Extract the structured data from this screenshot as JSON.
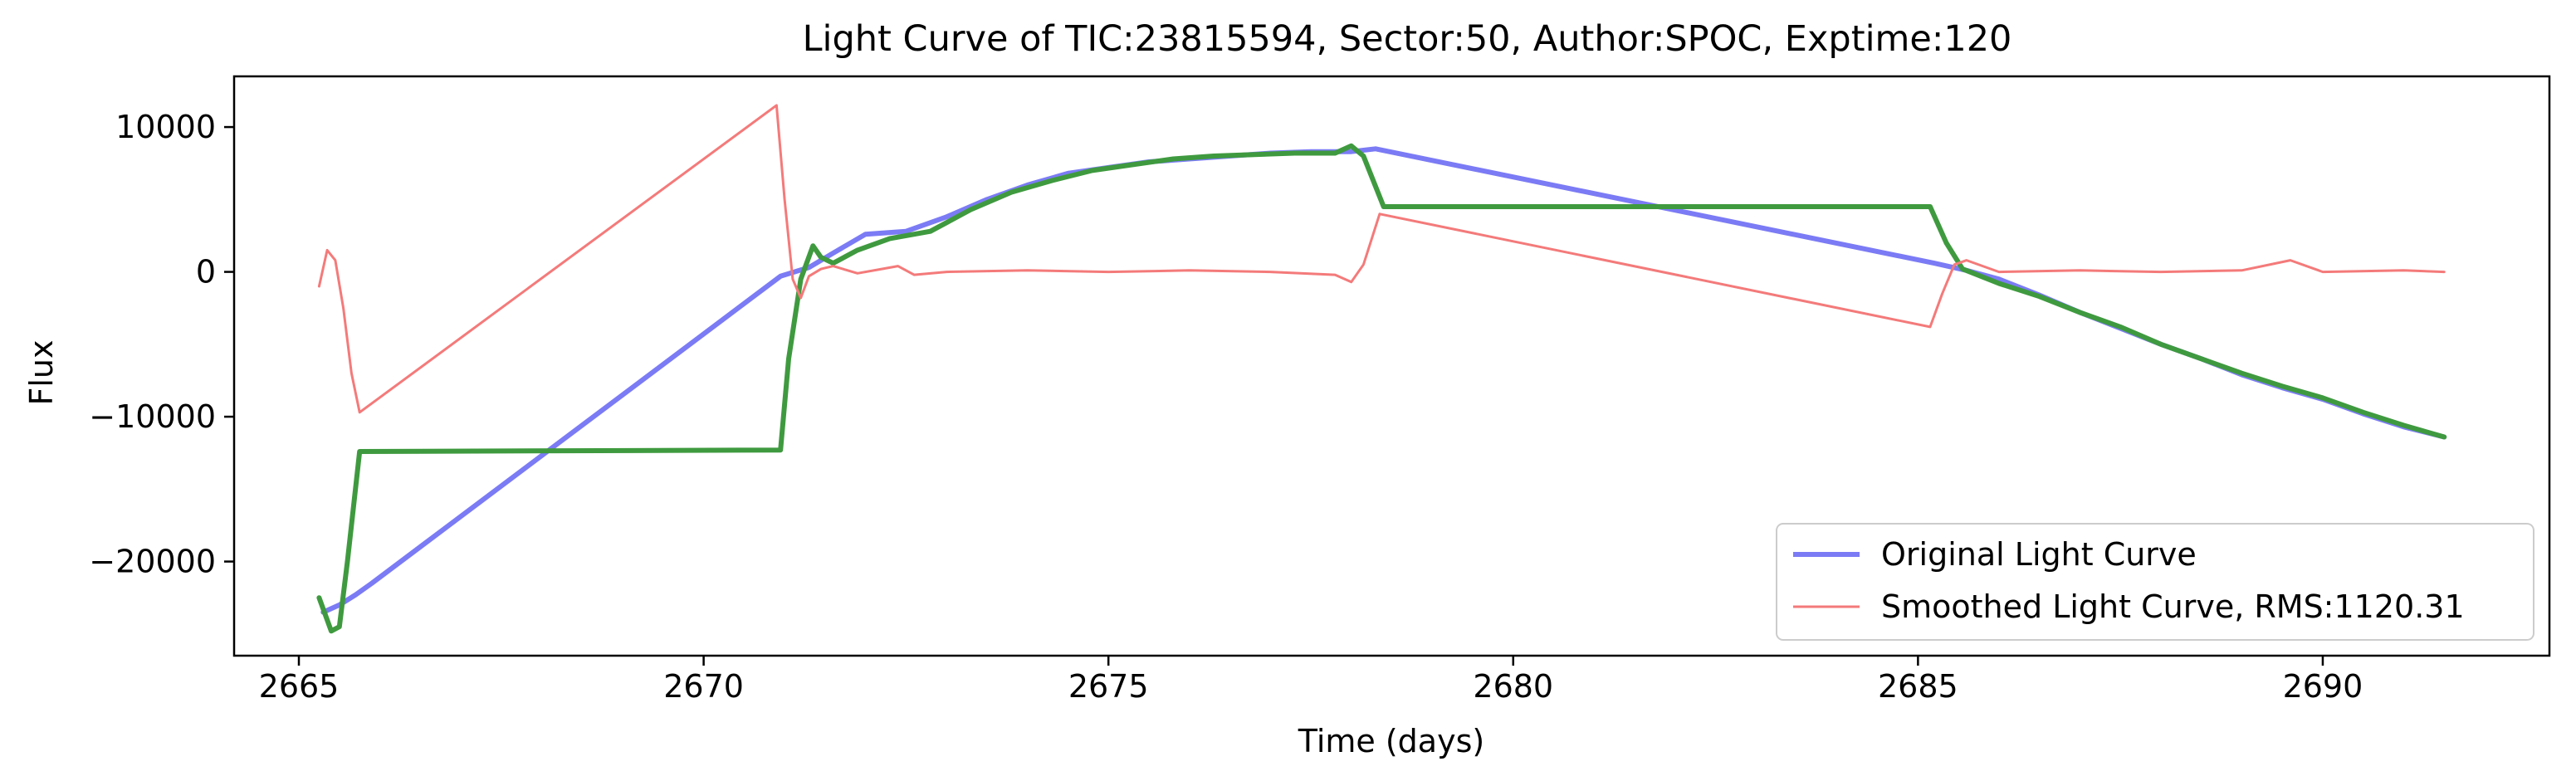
{
  "chart_data": {
    "type": "line",
    "title": "Light Curve of TIC:23815594, Sector:50, Author:SPOC, Exptime:120",
    "xlabel": "Time (days)",
    "ylabel": "Flux",
    "xlim": [
      2664.2,
      2692.8
    ],
    "ylim": [
      -26500,
      13500
    ],
    "xticks": [
      2665,
      2670,
      2675,
      2680,
      2685,
      2690
    ],
    "xtick_labels": [
      "2665",
      "2670",
      "2675",
      "2680",
      "2685",
      "2690"
    ],
    "yticks": [
      10000,
      0,
      -10000,
      -20000
    ],
    "ytick_labels": [
      "10000",
      "0",
      "−10000",
      "−20000"
    ],
    "grid": false,
    "legend_position": "lower-right",
    "series": [
      {
        "name": "Original Light Curve",
        "color": "#7b7bf5",
        "x": [
          2665.3,
          2665.5,
          2665.7,
          2665.9,
          2670.95,
          2671.3,
          2671.6,
          2672.0,
          2672.5,
          2673.0,
          2673.5,
          2674.0,
          2674.5,
          2675.0,
          2675.5,
          2676.0,
          2676.5,
          2677.0,
          2677.5,
          2678.0,
          2678.3,
          2685.2,
          2685.6,
          2686.0,
          2686.5,
          2687.0,
          2687.5,
          2688.0,
          2688.5,
          2689.0,
          2689.5,
          2690.0,
          2690.5,
          2691.0,
          2691.5
        ],
        "y": [
          -23500,
          -23000,
          -22300,
          -21500,
          -300,
          300,
          1300,
          2600,
          2800,
          3800,
          5000,
          6000,
          6800,
          7200,
          7600,
          7800,
          8000,
          8200,
          8300,
          8300,
          8500,
          600,
          100,
          -500,
          -1600,
          -2800,
          -3900,
          -5000,
          -6000,
          -7100,
          -8000,
          -8800,
          -9800,
          -10700,
          -11400
        ]
      },
      {
        "name": "",
        "color": "#3f9a3f",
        "x": [
          2665.25,
          2665.4,
          2665.5,
          2665.6,
          2665.75,
          2670.95,
          2671.05,
          2671.2,
          2671.35,
          2671.45,
          2671.6,
          2671.9,
          2672.3,
          2672.8,
          2673.3,
          2673.8,
          2674.3,
          2674.8,
          2675.3,
          2675.8,
          2676.3,
          2676.8,
          2677.3,
          2677.8,
          2678.0,
          2678.15,
          2678.4,
          2685.15,
          2685.35,
          2685.55,
          2686.0,
          2686.5,
          2687.0,
          2687.5,
          2688.0,
          2688.5,
          2689.0,
          2689.5,
          2690.0,
          2690.5,
          2691.0,
          2691.5
        ],
        "y": [
          -22500,
          -24800,
          -24500,
          -20000,
          -12400,
          -12300,
          -6000,
          -500,
          1800,
          1000,
          600,
          1500,
          2300,
          2800,
          4300,
          5500,
          6300,
          7000,
          7400,
          7800,
          8000,
          8100,
          8200,
          8200,
          8700,
          8000,
          4500,
          4500,
          2000,
          200,
          -800,
          -1700,
          -2800,
          -3800,
          -5000,
          -6000,
          -7000,
          -7900,
          -8700,
          -9700,
          -10600,
          -11400
        ]
      },
      {
        "name": "Smoothed Light Curve, RMS:1120.31",
        "color": "#f47a7a",
        "x": [
          2665.25,
          2665.35,
          2665.45,
          2665.55,
          2665.65,
          2665.75,
          2670.9,
          2671.0,
          2671.1,
          2671.2,
          2671.3,
          2671.45,
          2671.6,
          2671.9,
          2672.2,
          2672.4,
          2672.6,
          2673.0,
          2674.0,
          2675.0,
          2676.0,
          2677.0,
          2677.8,
          2678.0,
          2678.15,
          2678.35,
          2685.15,
          2685.3,
          2685.45,
          2685.6,
          2686.0,
          2687.0,
          2688.0,
          2689.0,
          2689.6,
          2690.0,
          2691.0,
          2691.5
        ],
        "y": [
          -1000,
          1500,
          800,
          -2500,
          -7000,
          -9700,
          11500,
          5000,
          -500,
          -1800,
          -300,
          200,
          400,
          -100,
          200,
          400,
          -200,
          0,
          100,
          0,
          100,
          0,
          -200,
          -700,
          500,
          4000,
          -3800,
          -1500,
          500,
          800,
          0,
          100,
          0,
          100,
          800,
          0,
          100,
          0
        ]
      }
    ]
  }
}
